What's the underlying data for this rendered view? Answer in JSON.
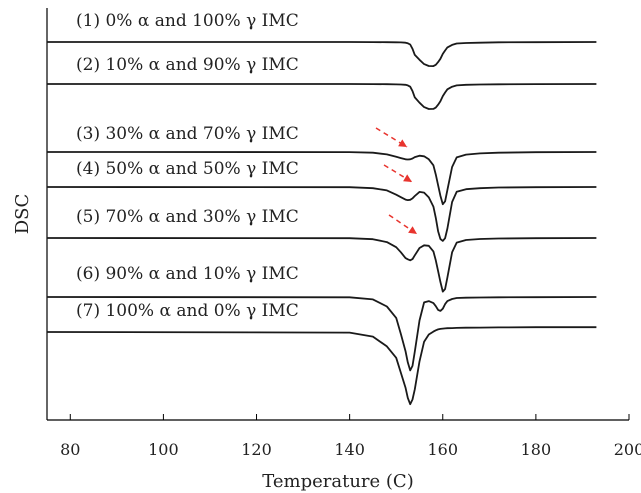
{
  "chart_data": {
    "type": "line",
    "title": "",
    "xlabel": "Temperature (C)",
    "ylabel": "DSC",
    "xlim": [
      75,
      200
    ],
    "xticks": [
      80,
      100,
      120,
      140,
      160,
      180,
      200
    ],
    "y_ticks_shown": false,
    "grid": false,
    "x": [
      75,
      140,
      145,
      148,
      150,
      151,
      152,
      152.5,
      153,
      153.5,
      154,
      155,
      156,
      157,
      158,
      158.5,
      159,
      159.5,
      160,
      160.5,
      161,
      162,
      163,
      165,
      168,
      172,
      180,
      193
    ],
    "series": [
      {
        "name": "(1) 0% α and 100% γ IMC",
        "values": [
          0.0,
          -0.01,
          -0.04,
          -0.1,
          -0.18,
          -0.26,
          -0.44,
          -0.74,
          -1.5,
          -4.0,
          -7.6,
          -10.5,
          -13.0,
          -14.1,
          -14.15,
          -13.4,
          -11.8,
          -9.9,
          -7.0,
          -5.0,
          -3.2,
          -1.7,
          -0.9,
          -0.6,
          -0.4,
          -0.2,
          -0.1,
          0.0
        ]
      },
      {
        "name": "(2) 10% α and 90% γ IMC",
        "values": [
          0.0,
          -0.02,
          -0.08,
          -0.14,
          -0.22,
          -0.3,
          -0.48,
          -0.8,
          -1.6,
          -4.2,
          -7.9,
          -11.0,
          -13.6,
          -14.7,
          -14.65,
          -13.9,
          -12.2,
          -10.1,
          -7.1,
          -5.0,
          -3.1,
          -1.6,
          -0.8,
          -0.5,
          -0.3,
          -0.15,
          -0.05,
          0.0
        ]
      },
      {
        "name": "(3) 30% α and 70% γ IMC",
        "values": [
          0.0,
          -0.05,
          -0.4,
          -1.4,
          -2.8,
          -3.6,
          -4.3,
          -4.4,
          -4.3,
          -3.8,
          -3.0,
          -2.2,
          -2.5,
          -4.3,
          -7.8,
          -13.3,
          -19.5,
          -25.7,
          -30.7,
          -29.0,
          -22.3,
          -8.8,
          -3.2,
          -1.5,
          -0.8,
          -0.4,
          -0.1,
          0.0
        ]
      },
      {
        "name": "(4) 50% α and 50% γ IMC",
        "values": [
          0.0,
          -0.1,
          -0.7,
          -2.0,
          -4.5,
          -6.0,
          -7.4,
          -7.7,
          -7.5,
          -6.7,
          -5.3,
          -2.9,
          -3.3,
          -6.1,
          -11.5,
          -18.2,
          -26.0,
          -30.6,
          -31.7,
          -30.1,
          -24.4,
          -8.8,
          -2.8,
          -1.3,
          -0.7,
          -0.3,
          -0.1,
          0.0
        ]
      },
      {
        "name": "(5) 70% α and 30% γ IMC",
        "values": [
          0.0,
          -0.1,
          -0.7,
          -2.4,
          -5.4,
          -8.4,
          -11.8,
          -12.5,
          -13.1,
          -12.4,
          -10.2,
          -5.9,
          -4.3,
          -4.6,
          -7.9,
          -13.2,
          -19.5,
          -25.8,
          -31.5,
          -30.0,
          -23.2,
          -8.4,
          -2.7,
          -1.2,
          -0.6,
          -0.3,
          -0.1,
          0.0
        ]
      },
      {
        "name": "(6) 90% α and 10% γ IMC",
        "values": [
          0.0,
          -0.2,
          -1.4,
          -5.6,
          -12.3,
          -21.8,
          -31.8,
          -38.5,
          -43.2,
          -40.5,
          -32.1,
          -13.8,
          -3.2,
          -2.4,
          -3.6,
          -5.4,
          -7.6,
          -8.2,
          -6.9,
          -4.2,
          -2.4,
          -1.2,
          -0.6,
          -0.4,
          -0.3,
          -0.2,
          -0.1,
          0.0
        ]
      },
      {
        "name": "(7) 100% α and 0% γ IMC",
        "values": [
          -4.1,
          -4.5,
          -6.8,
          -12.6,
          -19.3,
          -28.2,
          -36.8,
          -42.9,
          -46.6,
          -43.8,
          -37.8,
          -21.4,
          -9.8,
          -5.6,
          -3.9,
          -3.1,
          -2.6,
          -2.3,
          -2.1,
          -2.0,
          -1.9,
          -1.8,
          -1.7,
          -1.6,
          -1.5,
          -1.4,
          -1.3,
          -1.3
        ]
      }
    ]
  }
}
